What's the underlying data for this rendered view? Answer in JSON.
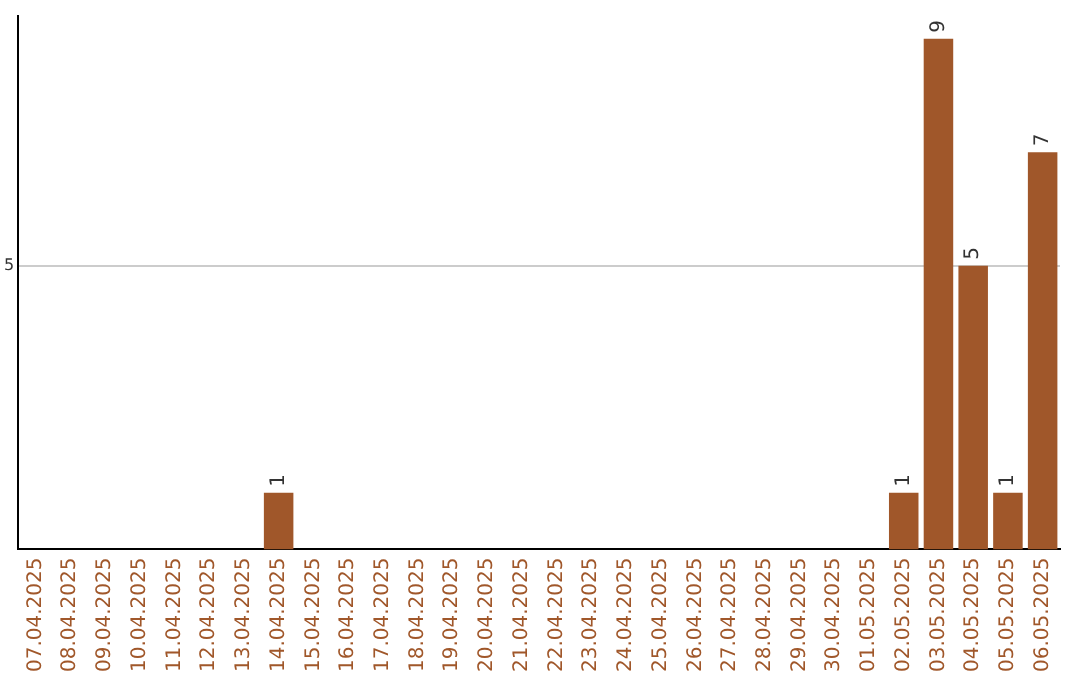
{
  "chart_data": {
    "type": "bar",
    "categories": [
      "07.04.2025",
      "08.04.2025",
      "09.04.2025",
      "10.04.2025",
      "11.04.2025",
      "12.04.2025",
      "13.04.2025",
      "14.04.2025",
      "15.04.2025",
      "16.04.2025",
      "17.04.2025",
      "18.04.2025",
      "19.04.2025",
      "20.04.2025",
      "21.04.2025",
      "22.04.2025",
      "23.04.2025",
      "24.04.2025",
      "25.04.2025",
      "26.04.2025",
      "27.04.2025",
      "28.04.2025",
      "29.04.2025",
      "30.04.2025",
      "01.05.2025",
      "02.05.2025",
      "03.05.2025",
      "04.05.2025",
      "05.05.2025",
      "06.05.2025"
    ],
    "values": [
      0,
      0,
      0,
      0,
      0,
      0,
      0,
      1,
      0,
      0,
      0,
      0,
      0,
      0,
      0,
      0,
      0,
      0,
      0,
      0,
      0,
      0,
      0,
      0,
      0,
      1,
      9,
      5,
      1,
      7
    ],
    "value_labels": [
      null,
      null,
      null,
      null,
      null,
      null,
      null,
      "1",
      null,
      null,
      null,
      null,
      null,
      null,
      null,
      null,
      null,
      null,
      null,
      null,
      null,
      null,
      null,
      null,
      null,
      "1",
      "9",
      "5",
      "1",
      "7"
    ],
    "color": "#a0572a",
    "ylim": [
      0,
      9.4
    ],
    "yticks": [
      5
    ],
    "grid": "y",
    "legend": false
  }
}
